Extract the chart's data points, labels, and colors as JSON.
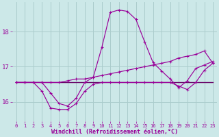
{
  "xlabel": "Windchill (Refroidissement éolien,°C)",
  "background_color": "#cce8e8",
  "grid_color": "#aacccc",
  "line_color_magenta": "#990099",
  "line_color_dark": "#660066",
  "xlim": [
    -0.5,
    23.5
  ],
  "ylim": [
    15.45,
    18.85
  ],
  "yticks": [
    16,
    17,
    18
  ],
  "xticks": [
    0,
    1,
    2,
    3,
    4,
    5,
    6,
    7,
    8,
    9,
    10,
    11,
    12,
    13,
    14,
    15,
    16,
    17,
    18,
    19,
    20,
    21,
    22,
    23
  ],
  "line_flat_x": [
    0,
    1,
    2,
    3,
    4,
    5,
    6,
    7,
    8,
    9,
    10,
    11,
    12,
    13,
    14,
    15,
    16,
    17,
    18,
    19,
    20,
    21,
    22,
    23
  ],
  "line_flat_y": [
    16.55,
    16.55,
    16.55,
    16.55,
    16.55,
    16.55,
    16.55,
    16.55,
    16.55,
    16.55,
    16.55,
    16.55,
    16.55,
    16.55,
    16.55,
    16.55,
    16.55,
    16.55,
    16.55,
    16.55,
    16.55,
    16.55,
    16.55,
    16.55
  ],
  "line_rise_x": [
    0,
    1,
    2,
    3,
    4,
    5,
    6,
    7,
    8,
    9,
    10,
    11,
    12,
    13,
    14,
    15,
    16,
    17,
    18,
    19,
    20,
    21,
    22,
    23
  ],
  "line_rise_y": [
    16.55,
    16.55,
    16.55,
    16.55,
    16.55,
    16.55,
    16.6,
    16.65,
    16.65,
    16.7,
    16.75,
    16.8,
    16.85,
    16.9,
    16.95,
    17.0,
    17.05,
    17.1,
    17.15,
    17.25,
    17.3,
    17.35,
    17.45,
    17.1
  ],
  "line_dip_x": [
    0,
    1,
    2,
    3,
    4,
    5,
    6,
    7,
    8,
    9,
    10,
    11,
    12,
    13,
    14,
    15,
    16,
    17,
    18,
    19,
    20,
    21,
    22,
    23
  ],
  "line_dip_y": [
    16.55,
    16.55,
    16.55,
    16.3,
    15.82,
    15.78,
    15.78,
    15.95,
    16.3,
    16.5,
    16.55,
    16.55,
    16.55,
    16.55,
    16.55,
    16.55,
    16.55,
    16.55,
    16.55,
    16.45,
    16.35,
    16.55,
    16.9,
    17.1
  ],
  "line_hump_x": [
    0,
    1,
    2,
    3,
    4,
    5,
    6,
    7,
    8,
    9,
    10,
    11,
    12,
    13,
    14,
    15,
    16,
    17,
    18,
    19,
    20,
    21,
    22,
    23
  ],
  "line_hump_y": [
    16.55,
    16.55,
    16.55,
    16.55,
    16.25,
    15.95,
    15.88,
    16.1,
    16.55,
    16.7,
    17.55,
    18.55,
    18.62,
    18.58,
    18.35,
    17.72,
    17.12,
    16.88,
    16.65,
    16.4,
    16.6,
    16.95,
    17.05,
    17.15
  ],
  "marker": "+"
}
